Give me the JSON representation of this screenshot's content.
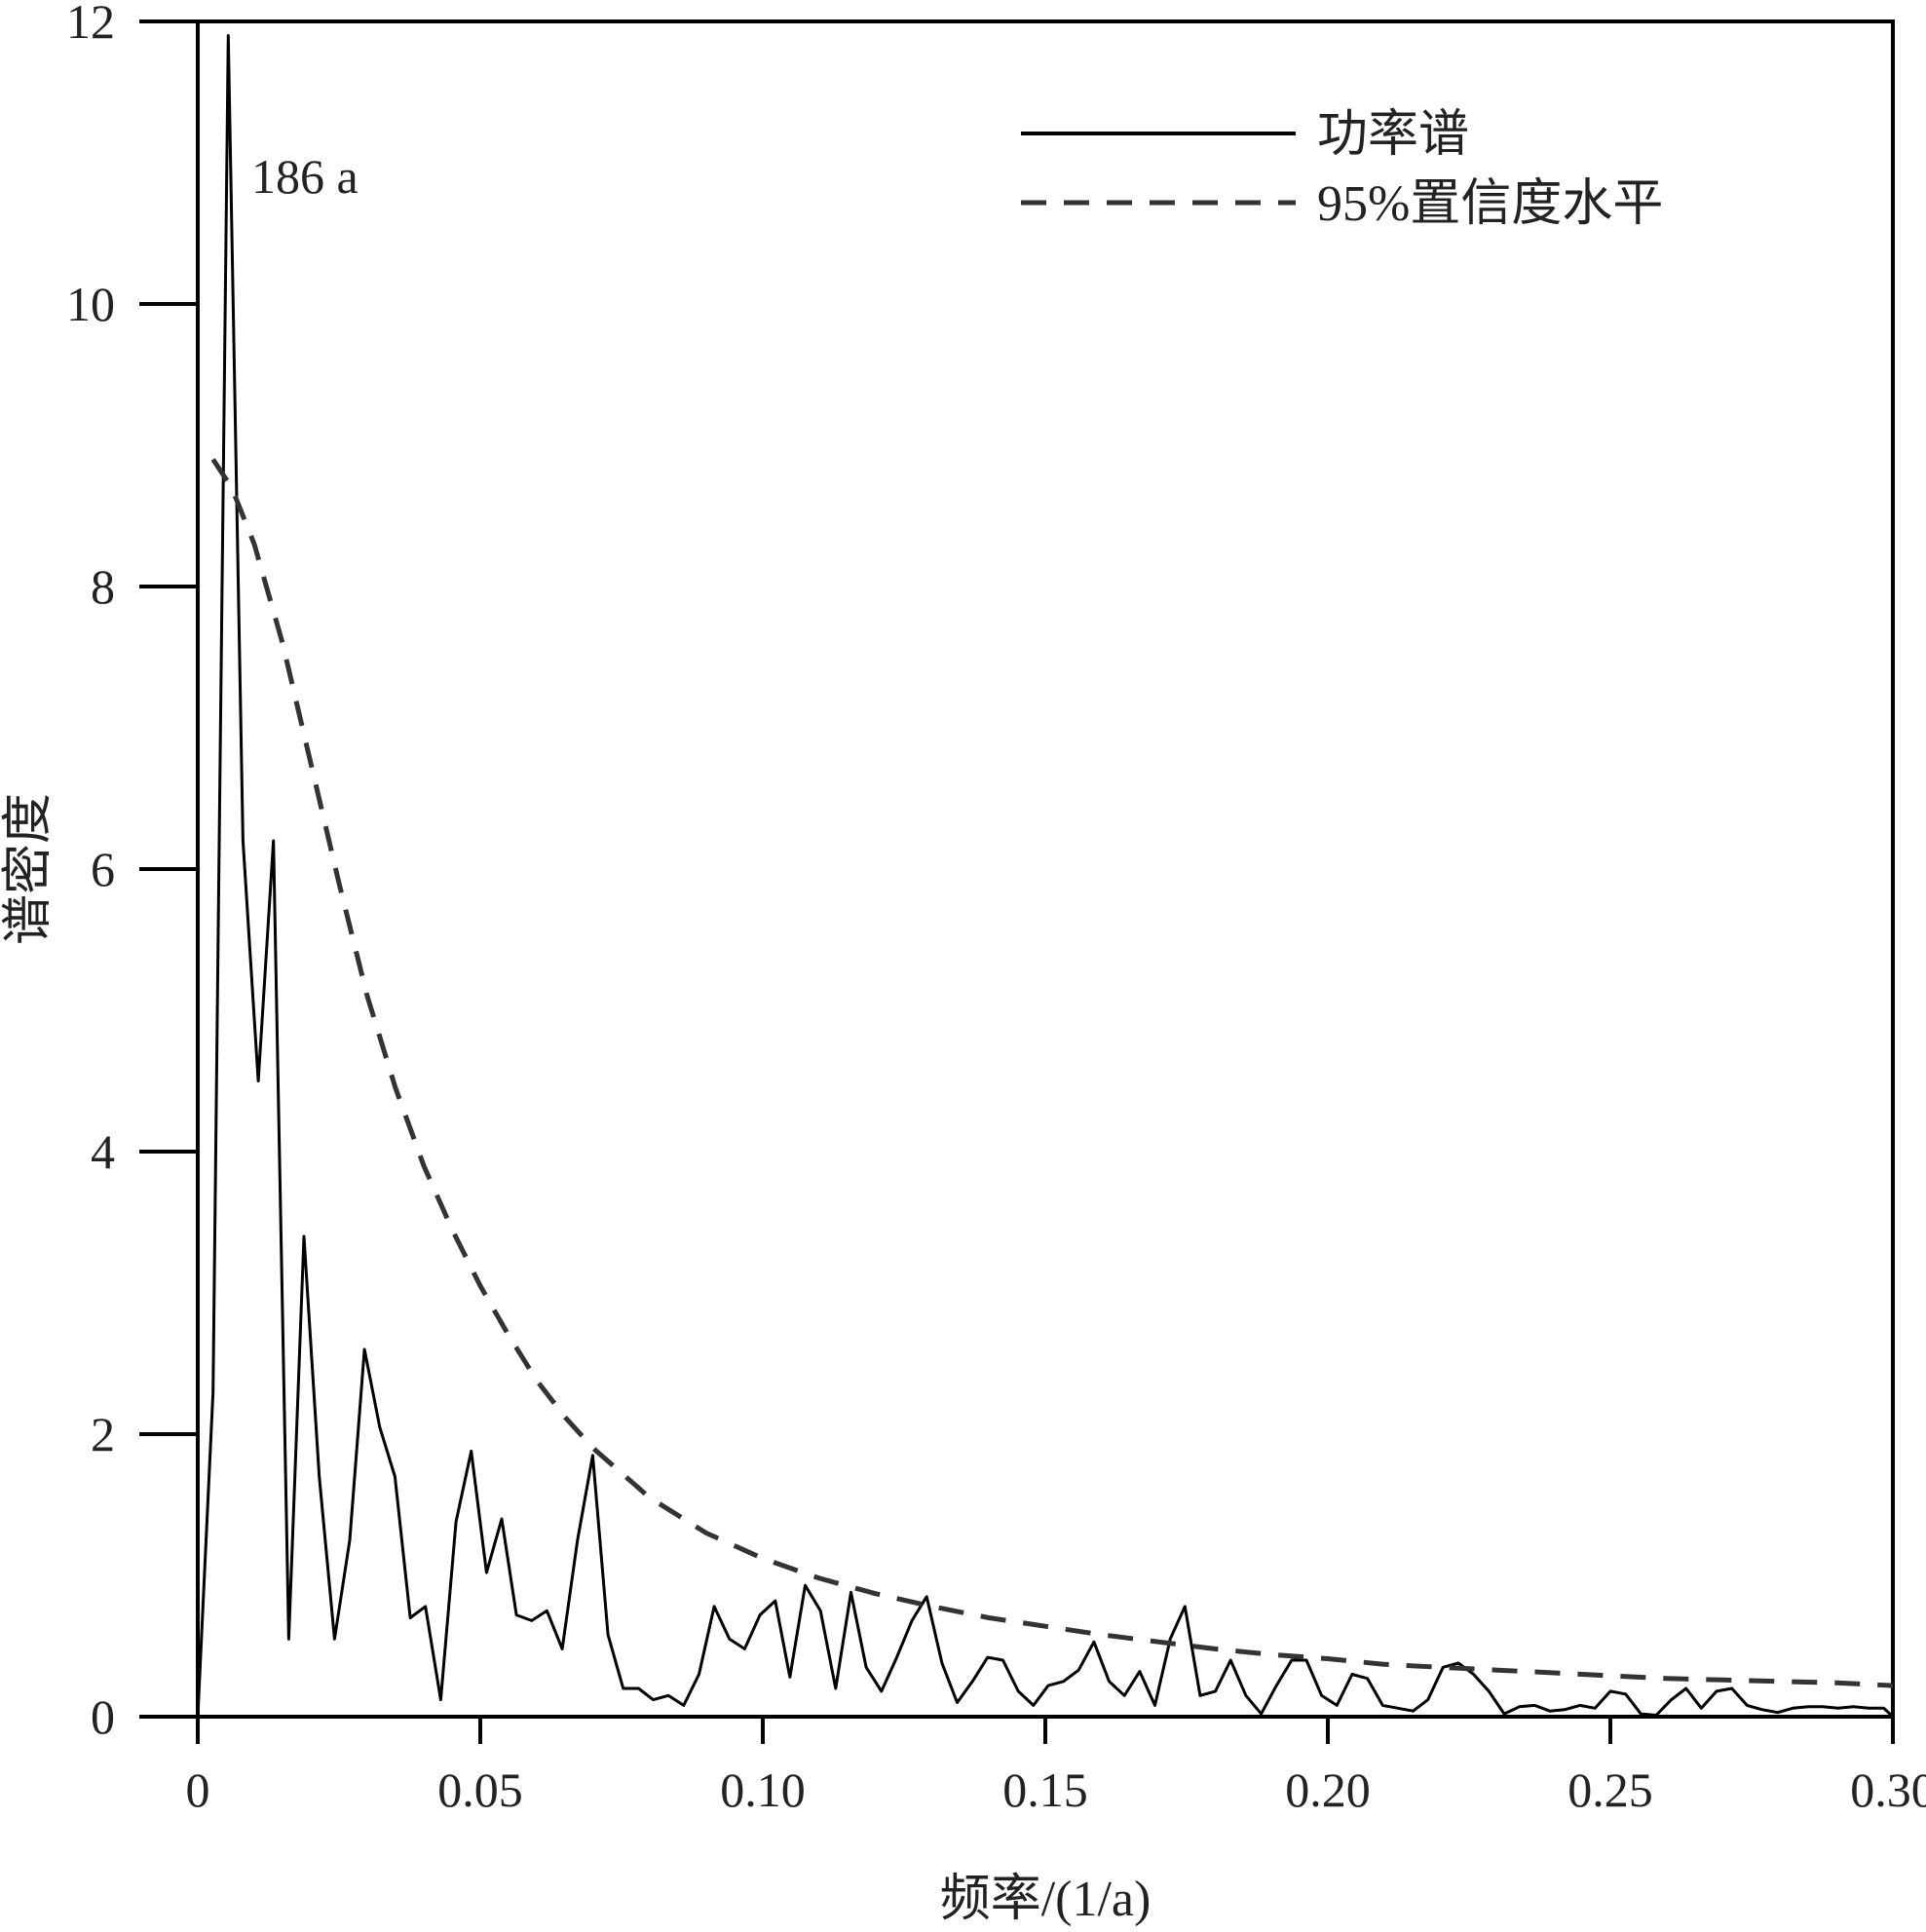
{
  "chart_data": {
    "type": "line",
    "xlabel": "频率/(1/a)",
    "ylabel": "谱密度",
    "xlim": [
      0,
      0.3
    ],
    "ylim": [
      0,
      12
    ],
    "x_ticks": [
      0,
      0.05,
      0.1,
      0.15,
      0.2,
      0.25,
      0.3
    ],
    "x_tick_labels": [
      "0",
      "0.05",
      "0.10",
      "0.15",
      "0.20",
      "0.25",
      "0.30"
    ],
    "y_ticks": [
      0,
      2,
      4,
      6,
      8,
      10,
      12
    ],
    "y_tick_labels": [
      "0",
      "2",
      "4",
      "6",
      "8",
      "10",
      "12"
    ],
    "grid": false,
    "legend_position": "top-right",
    "annotation": {
      "text": "186 a",
      "x": 0.0054,
      "y": 11.9
    },
    "series": [
      {
        "name": "功率谱",
        "style": "solid",
        "color": "#000000",
        "x": [
          0,
          0.0027,
          0.0054,
          0.008,
          0.0107,
          0.0134,
          0.0161,
          0.0188,
          0.0215,
          0.0242,
          0.0269,
          0.0295,
          0.0322,
          0.0349,
          0.0376,
          0.0403,
          0.043,
          0.0457,
          0.0484,
          0.0511,
          0.0538,
          0.0564,
          0.0591,
          0.0618,
          0.0645,
          0.0672,
          0.0699,
          0.0726,
          0.0753,
          0.078,
          0.0806,
          0.0833,
          0.086,
          0.0887,
          0.0914,
          0.0941,
          0.0968,
          0.0995,
          0.1022,
          0.1048,
          0.1075,
          0.1102,
          0.1129,
          0.1156,
          0.1183,
          0.121,
          0.1237,
          0.1264,
          0.129,
          0.1317,
          0.1344,
          0.1371,
          0.1398,
          0.1425,
          0.1452,
          0.1479,
          0.1505,
          0.1532,
          0.1559,
          0.1586,
          0.1613,
          0.164,
          0.1667,
          0.1694,
          0.1721,
          0.1747,
          0.1774,
          0.1801,
          0.1828,
          0.1855,
          0.1882,
          0.1909,
          0.1936,
          0.1962,
          0.1989,
          0.2016,
          0.2043,
          0.207,
          0.2097,
          0.2124,
          0.2151,
          0.2177,
          0.2204,
          0.2231,
          0.2258,
          0.2285,
          0.2312,
          0.2339,
          0.2366,
          0.2393,
          0.2419,
          0.2446,
          0.2473,
          0.25,
          0.2527,
          0.2554,
          0.2581,
          0.2608,
          0.2634,
          0.2661,
          0.2688,
          0.2715,
          0.2742,
          0.2769,
          0.2796,
          0.2823,
          0.285,
          0.2876,
          0.2903,
          0.293,
          0.2957,
          0.2984,
          0.3
        ],
        "y": [
          0,
          2.3,
          11.9,
          6.2,
          4.5,
          6.2,
          0.55,
          3.4,
          1.7,
          0.55,
          1.25,
          2.6,
          2.05,
          1.7,
          0.7,
          0.78,
          0.12,
          1.38,
          1.88,
          1.02,
          1.4,
          0.72,
          0.68,
          0.75,
          0.48,
          1.25,
          1.85,
          0.58,
          0.2,
          0.2,
          0.12,
          0.15,
          0.08,
          0.3,
          0.78,
          0.55,
          0.48,
          0.72,
          0.82,
          0.28,
          0.93,
          0.75,
          0.2,
          0.88,
          0.35,
          0.18,
          0.42,
          0.68,
          0.85,
          0.38,
          0.1,
          0.25,
          0.42,
          0.4,
          0.18,
          0.08,
          0.22,
          0.25,
          0.33,
          0.53,
          0.25,
          0.15,
          0.32,
          0.08,
          0.55,
          0.78,
          0.15,
          0.18,
          0.4,
          0.15,
          0.02,
          0.22,
          0.4,
          0.4,
          0.15,
          0.08,
          0.3,
          0.27,
          0.08,
          0.06,
          0.04,
          0.12,
          0.35,
          0.38,
          0.3,
          0.18,
          0.02,
          0.07,
          0.08,
          0.04,
          0.05,
          0.08,
          0.06,
          0.18,
          0.16,
          0.02,
          0.01,
          0.12,
          0.2,
          0.06,
          0.18,
          0.2,
          0.08,
          0.05,
          0.03,
          0.06,
          0.07,
          0.07,
          0.06,
          0.07,
          0.06,
          0.06,
          0
        ]
      },
      {
        "name": "95%置信度水平",
        "style": "dashed",
        "color": "#333333",
        "x": [
          0.0027,
          0.006,
          0.01,
          0.015,
          0.02,
          0.025,
          0.03,
          0.035,
          0.04,
          0.045,
          0.05,
          0.055,
          0.06,
          0.065,
          0.07,
          0.08,
          0.09,
          0.1,
          0.11,
          0.12,
          0.13,
          0.14,
          0.15,
          0.16,
          0.17,
          0.18,
          0.19,
          0.2,
          0.21,
          0.22,
          0.23,
          0.24,
          0.25,
          0.26,
          0.27,
          0.28,
          0.29,
          0.3
        ],
        "y": [
          8.9,
          8.7,
          8.3,
          7.6,
          6.75,
          5.9,
          5.1,
          4.45,
          3.9,
          3.45,
          3.05,
          2.7,
          2.38,
          2.12,
          1.9,
          1.55,
          1.3,
          1.12,
          0.98,
          0.87,
          0.78,
          0.7,
          0.64,
          0.58,
          0.53,
          0.48,
          0.44,
          0.41,
          0.37,
          0.35,
          0.33,
          0.31,
          0.29,
          0.27,
          0.26,
          0.25,
          0.24,
          0.22
        ]
      }
    ]
  }
}
